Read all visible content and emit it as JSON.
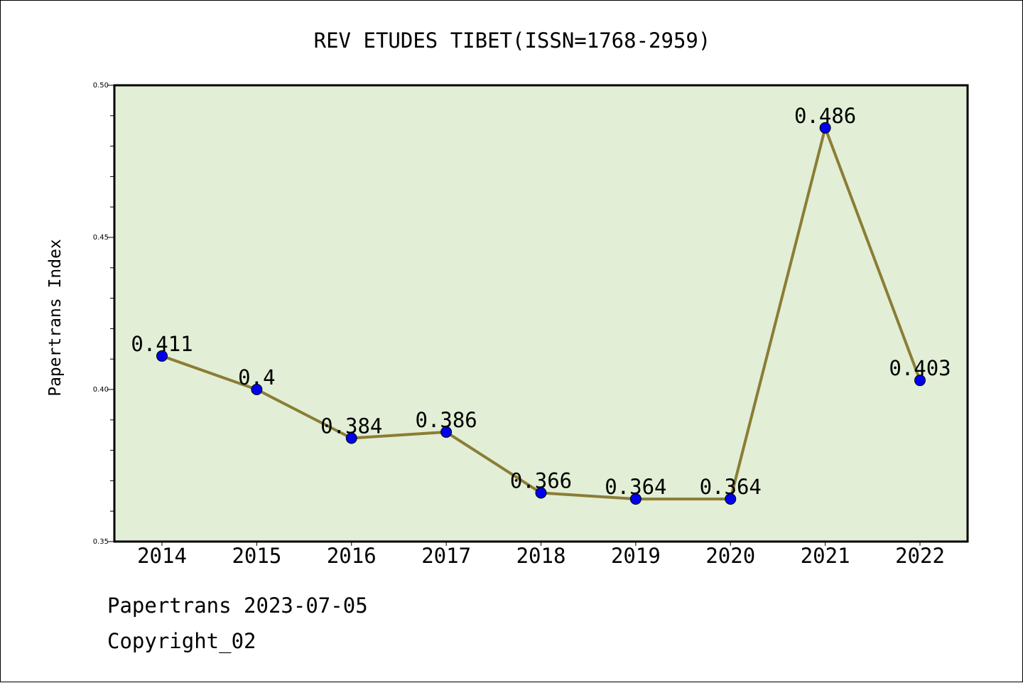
{
  "chart_data": {
    "type": "line",
    "title": "REV ETUDES TIBET(ISSN=1768-2959)",
    "xlabel": "",
    "ylabel": "Papertrans Index",
    "categories": [
      "2014",
      "2015",
      "2016",
      "2017",
      "2018",
      "2019",
      "2020",
      "2021",
      "2022"
    ],
    "series": [
      {
        "values": [
          0.411,
          0.4,
          0.384,
          0.386,
          0.366,
          0.364,
          0.364,
          0.486,
          0.403
        ],
        "labels": [
          "0.411",
          "0.4",
          "0.384",
          "0.386",
          "0.366",
          "0.364",
          "0.364",
          "0.486",
          "0.403"
        ]
      }
    ],
    "ylim": [
      0.35,
      0.5
    ],
    "yticks": [
      0.35,
      0.4,
      0.45,
      0.5
    ],
    "ytick_labels": [
      "0.35",
      "0.40",
      "0.45",
      "0.50"
    ],
    "grid": false,
    "legend": "none",
    "colors": {
      "plot_background": "#e2efd6",
      "line": "#8b7d35",
      "marker": "#0000ee",
      "axes": "#000000"
    }
  },
  "footer": {
    "line1": "Papertrans 2023-07-05",
    "line2": "Copyright_02"
  }
}
